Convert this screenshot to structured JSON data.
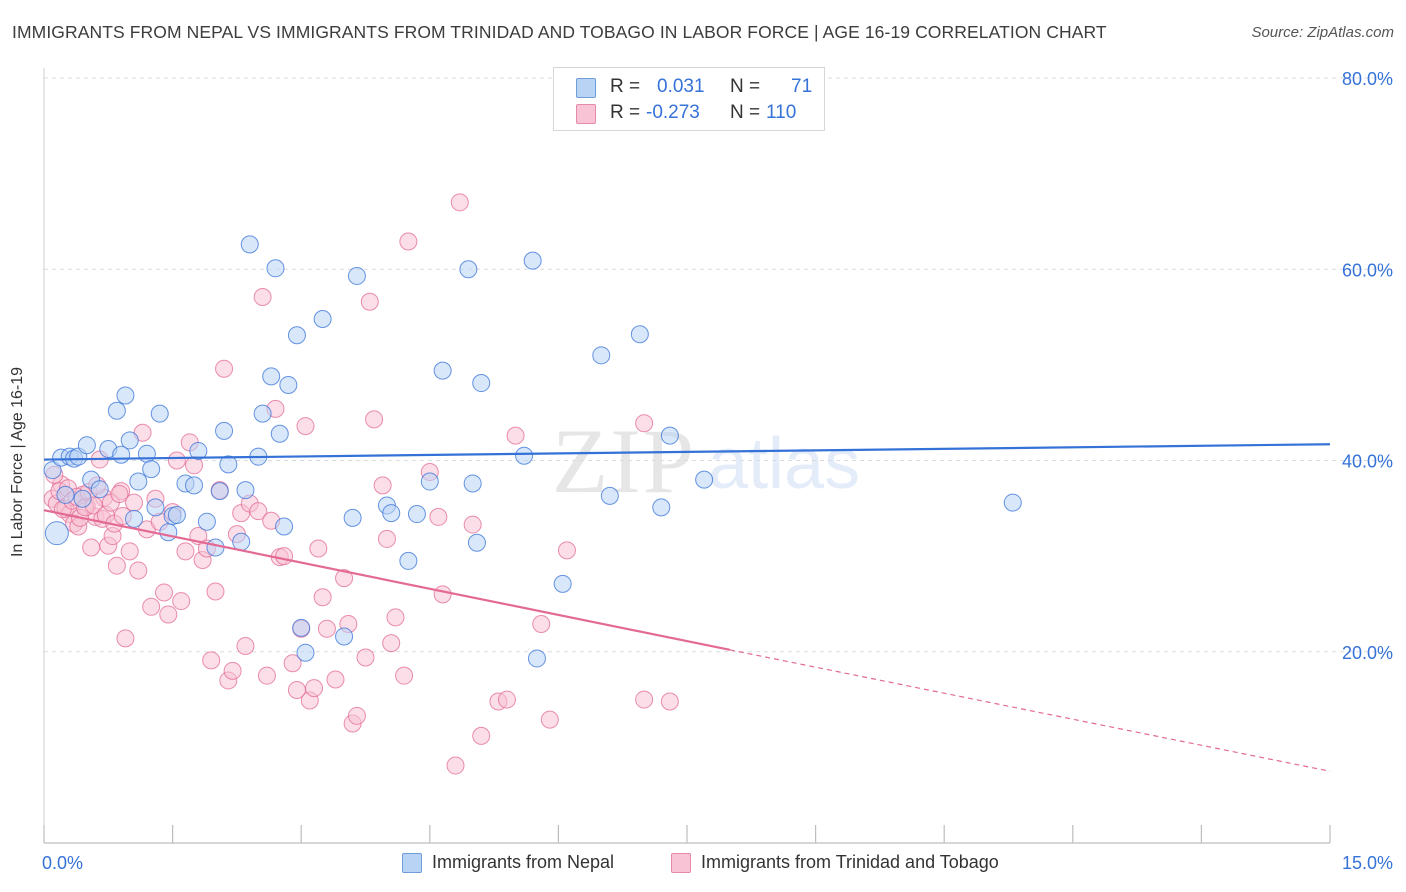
{
  "title": "IMMIGRANTS FROM NEPAL VS IMMIGRANTS FROM TRINIDAD AND TOBAGO IN LABOR FORCE | AGE 16-19 CORRELATION CHART",
  "source": "Source: ZipAtlas.com",
  "watermark": {
    "zip": "ZIP",
    "atlas": "atlas"
  },
  "stats": [
    {
      "r_label": "R =",
      "r_value": "0.031",
      "n_label": "N =",
      "n_value": "71"
    },
    {
      "r_label": "R =",
      "r_value": "-0.273",
      "n_label": "N =",
      "n_value": "110"
    }
  ],
  "chart_data": {
    "type": "scatter",
    "ylabel": "In Labor Force | Age 16-19",
    "xlim": [
      0,
      15
    ],
    "ylim": [
      0,
      80
    ],
    "x_tick_labels": [
      "0.0%",
      "15.0%"
    ],
    "y_tick_labels": [
      "20.0%",
      "40.0%",
      "60.0%",
      "80.0%"
    ],
    "y_ticks": [
      20,
      40,
      60,
      80
    ],
    "grid": "horizontal dashed",
    "legend_position": "bottom",
    "colors": {
      "nepal": "#3572d8",
      "nepal_fill": "#b9d3f5",
      "trinidad": "#e36a95",
      "trinidad_fill": "#f8c3d4",
      "tick_label": "#3572d8"
    },
    "series": [
      {
        "name": "Immigrants from Nepal",
        "trend": {
          "x": [
            0,
            15
          ],
          "y": [
            40.1,
            41.7
          ]
        },
        "points": [
          [
            0.1,
            39.0
          ],
          [
            0.15,
            32.4
          ],
          [
            0.2,
            40.3
          ],
          [
            0.3,
            40.4
          ],
          [
            0.35,
            40.2
          ],
          [
            0.4,
            40.4
          ],
          [
            0.5,
            41.6
          ],
          [
            0.55,
            38.0
          ],
          [
            0.65,
            37.0
          ],
          [
            0.75,
            41.2
          ],
          [
            0.85,
            45.2
          ],
          [
            0.9,
            40.6
          ],
          [
            0.95,
            46.8
          ],
          [
            1.0,
            42.1
          ],
          [
            1.05,
            33.9
          ],
          [
            1.2,
            40.7
          ],
          [
            1.25,
            39.1
          ],
          [
            1.3,
            35.1
          ],
          [
            1.35,
            44.9
          ],
          [
            1.45,
            32.5
          ],
          [
            1.5,
            34.2
          ],
          [
            1.55,
            34.3
          ],
          [
            1.65,
            37.6
          ],
          [
            1.75,
            37.4
          ],
          [
            1.8,
            41.0
          ],
          [
            1.9,
            33.6
          ],
          [
            2.0,
            30.9
          ],
          [
            2.05,
            36.8
          ],
          [
            2.1,
            43.1
          ],
          [
            2.15,
            39.6
          ],
          [
            2.3,
            31.5
          ],
          [
            2.35,
            36.9
          ],
          [
            2.4,
            62.6
          ],
          [
            2.5,
            40.4
          ],
          [
            2.55,
            44.9
          ],
          [
            2.65,
            48.8
          ],
          [
            2.7,
            60.1
          ],
          [
            2.75,
            42.8
          ],
          [
            2.8,
            33.1
          ],
          [
            2.85,
            47.9
          ],
          [
            2.95,
            53.1
          ],
          [
            3.0,
            22.5
          ],
          [
            3.05,
            19.9
          ],
          [
            3.25,
            54.8
          ],
          [
            3.5,
            21.6
          ],
          [
            3.6,
            34.0
          ],
          [
            3.65,
            59.3
          ],
          [
            4.0,
            35.3
          ],
          [
            4.05,
            34.5
          ],
          [
            4.25,
            29.5
          ],
          [
            4.35,
            34.4
          ],
          [
            4.5,
            37.8
          ],
          [
            4.65,
            49.4
          ],
          [
            4.95,
            60.0
          ],
          [
            5.0,
            37.6
          ],
          [
            5.05,
            31.4
          ],
          [
            5.1,
            48.1
          ],
          [
            5.6,
            40.5
          ],
          [
            5.7,
            60.9
          ],
          [
            5.75,
            19.3
          ],
          [
            6.05,
            27.1
          ],
          [
            6.5,
            51.0
          ],
          [
            6.6,
            36.3
          ],
          [
            6.95,
            53.2
          ],
          [
            7.2,
            35.1
          ],
          [
            7.3,
            42.6
          ],
          [
            7.7,
            38.0
          ],
          [
            11.3,
            35.6
          ],
          [
            0.25,
            36.4
          ],
          [
            0.45,
            36.0
          ],
          [
            1.1,
            37.8
          ]
        ]
      },
      {
        "name": "Immigrants from Trinidad and Tobago",
        "trend": {
          "x": [
            0,
            8.0
          ],
          "y": [
            34.8,
            20.2
          ]
        },
        "trend_dashed": {
          "x": [
            8.0,
            15
          ],
          "y": [
            20.2,
            7.5
          ]
        },
        "points": [
          [
            0.1,
            36.0
          ],
          [
            0.15,
            35.5
          ],
          [
            0.2,
            37.5
          ],
          [
            0.25,
            35.0
          ],
          [
            0.3,
            34.4
          ],
          [
            0.35,
            33.4
          ],
          [
            0.4,
            33.1
          ],
          [
            0.45,
            36.4
          ],
          [
            0.5,
            35.2
          ],
          [
            0.55,
            30.9
          ],
          [
            0.6,
            34.1
          ],
          [
            0.65,
            40.1
          ],
          [
            0.7,
            36.1
          ],
          [
            0.75,
            31.1
          ],
          [
            0.8,
            32.1
          ],
          [
            0.85,
            29.0
          ],
          [
            0.9,
            36.8
          ],
          [
            0.95,
            21.4
          ],
          [
            1.0,
            30.5
          ],
          [
            1.05,
            35.6
          ],
          [
            1.1,
            28.5
          ],
          [
            1.15,
            42.9
          ],
          [
            1.2,
            32.8
          ],
          [
            1.25,
            24.7
          ],
          [
            1.3,
            36.0
          ],
          [
            1.35,
            33.6
          ],
          [
            1.4,
            26.2
          ],
          [
            1.45,
            23.9
          ],
          [
            1.5,
            34.6
          ],
          [
            1.55,
            40.0
          ],
          [
            1.6,
            25.3
          ],
          [
            1.65,
            30.5
          ],
          [
            1.7,
            41.9
          ],
          [
            1.75,
            39.5
          ],
          [
            1.8,
            32.1
          ],
          [
            1.85,
            29.6
          ],
          [
            1.9,
            30.8
          ],
          [
            1.95,
            19.1
          ],
          [
            2.0,
            26.3
          ],
          [
            2.05,
            36.9
          ],
          [
            2.1,
            49.6
          ],
          [
            2.15,
            17.0
          ],
          [
            2.2,
            18.0
          ],
          [
            2.25,
            32.3
          ],
          [
            2.3,
            34.5
          ],
          [
            2.35,
            20.6
          ],
          [
            2.4,
            35.5
          ],
          [
            2.5,
            34.7
          ],
          [
            2.55,
            57.1
          ],
          [
            2.6,
            17.5
          ],
          [
            2.65,
            33.7
          ],
          [
            2.7,
            45.4
          ],
          [
            2.75,
            29.9
          ],
          [
            2.8,
            30.0
          ],
          [
            2.9,
            18.8
          ],
          [
            2.95,
            16.0
          ],
          [
            3.0,
            22.4
          ],
          [
            3.05,
            43.6
          ],
          [
            3.1,
            14.9
          ],
          [
            3.15,
            16.2
          ],
          [
            3.2,
            30.8
          ],
          [
            3.25,
            25.7
          ],
          [
            3.3,
            22.4
          ],
          [
            3.4,
            17.1
          ],
          [
            3.5,
            27.7
          ],
          [
            3.55,
            22.9
          ],
          [
            3.6,
            12.5
          ],
          [
            3.65,
            13.3
          ],
          [
            3.75,
            19.4
          ],
          [
            3.8,
            56.6
          ],
          [
            3.85,
            44.3
          ],
          [
            3.95,
            37.4
          ],
          [
            4.0,
            31.8
          ],
          [
            4.05,
            20.9
          ],
          [
            4.1,
            23.6
          ],
          [
            4.2,
            17.5
          ],
          [
            4.25,
            62.9
          ],
          [
            4.5,
            38.8
          ],
          [
            4.6,
            34.1
          ],
          [
            4.65,
            26.0
          ],
          [
            4.8,
            8.1
          ],
          [
            4.85,
            67.0
          ],
          [
            5.0,
            33.3
          ],
          [
            5.1,
            11.2
          ],
          [
            5.3,
            14.8
          ],
          [
            5.4,
            15.0
          ],
          [
            5.5,
            42.6
          ],
          [
            5.8,
            22.9
          ],
          [
            5.9,
            12.9
          ],
          [
            6.1,
            30.6
          ],
          [
            7.0,
            43.9
          ],
          [
            7.0,
            15.0
          ],
          [
            7.3,
            14.8
          ],
          [
            0.12,
            38.5
          ],
          [
            0.18,
            36.8
          ],
          [
            0.22,
            34.9
          ],
          [
            0.28,
            37.1
          ],
          [
            0.33,
            35.8
          ],
          [
            0.38,
            36.2
          ],
          [
            0.42,
            34.0
          ],
          [
            0.48,
            35.1
          ],
          [
            0.52,
            36.7
          ],
          [
            0.58,
            35.3
          ],
          [
            0.62,
            37.4
          ],
          [
            0.68,
            33.9
          ],
          [
            0.72,
            34.3
          ],
          [
            0.78,
            35.6
          ],
          [
            0.82,
            33.4
          ],
          [
            0.88,
            36.5
          ],
          [
            0.92,
            34.2
          ]
        ]
      }
    ]
  },
  "legend": [
    {
      "label": "Immigrants from Nepal"
    },
    {
      "label": "Immigrants from Trinidad and Tobago"
    }
  ]
}
